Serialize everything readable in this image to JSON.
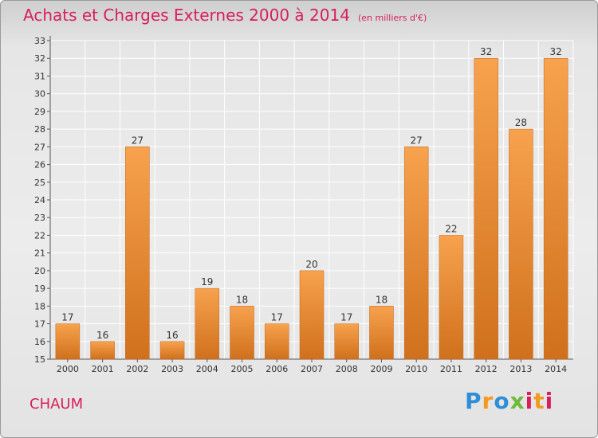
{
  "title": "Achats et Charges Externes 2000 à 2014",
  "unit": "(en milliers d'€)",
  "commune": "CHAUM",
  "logo": {
    "text": "Proxiti",
    "colors": [
      "#2e8fd6",
      "#f29a1f",
      "#6dbb3a",
      "#d7205a"
    ]
  },
  "colors": {
    "accent": "#d7205a",
    "bar_top": "#f7a24e",
    "bar_bottom": "#d0701c",
    "grid": "#ffffff"
  },
  "chart_data": {
    "type": "bar",
    "categories": [
      "2000",
      "2001",
      "2002",
      "2003",
      "2004",
      "2005",
      "2006",
      "2007",
      "2008",
      "2009",
      "2010",
      "2011",
      "2012",
      "2013",
      "2014"
    ],
    "values": [
      17,
      16,
      27,
      16,
      19,
      18,
      17,
      20,
      17,
      18,
      27,
      22,
      32,
      28,
      32
    ],
    "title": "Achats et Charges Externes 2000 à 2014",
    "xlabel": "",
    "ylabel": "",
    "ylim": [
      15,
      33
    ],
    "yticks": [
      15,
      16,
      17,
      18,
      19,
      20,
      21,
      22,
      23,
      24,
      25,
      26,
      27,
      28,
      29,
      30,
      31,
      32,
      33
    ],
    "grid": true,
    "legend": "none"
  }
}
